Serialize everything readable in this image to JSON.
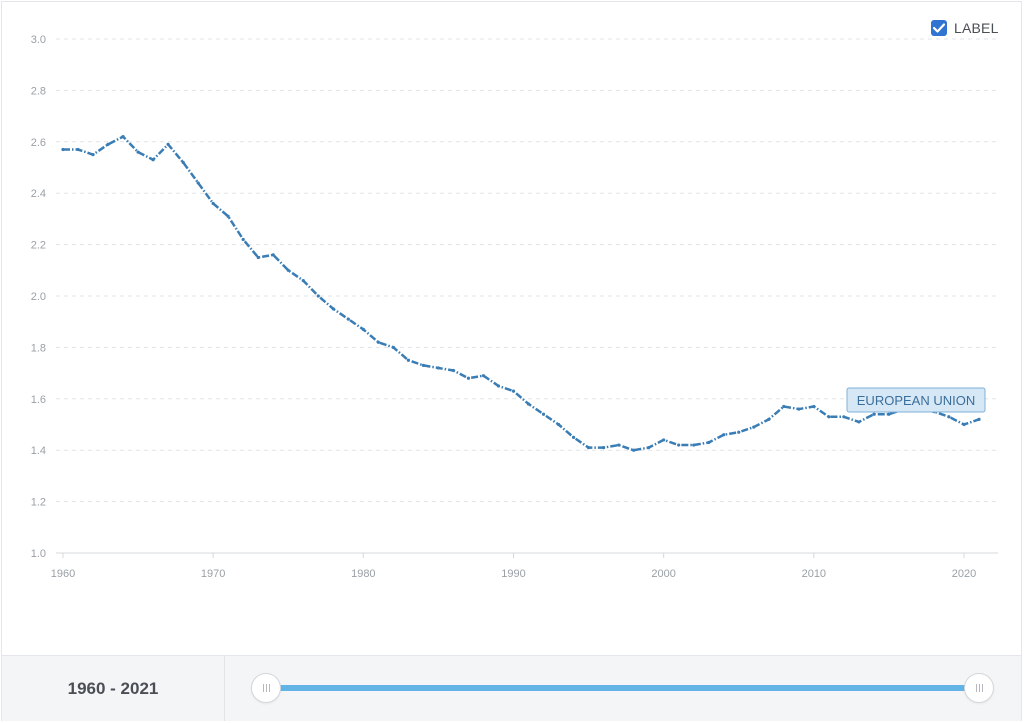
{
  "label_toggle": {
    "text": "LABEL",
    "checked": true
  },
  "footer": {
    "range_text": "1960 - 2021"
  },
  "colors": {
    "line": "#3a7db5",
    "grid": "#e1e3e6",
    "checkbox": "#2f74d0",
    "slider": "#63b4e6"
  },
  "chart_data": {
    "type": "line",
    "ylim": [
      1.0,
      3.0
    ],
    "xlim": [
      1960,
      2021
    ],
    "y_ticks": [
      "1.0",
      "1.2",
      "1.4",
      "1.6",
      "1.8",
      "2.0",
      "2.2",
      "2.4",
      "2.6",
      "2.8",
      "3.0"
    ],
    "x_ticks": [
      "1960",
      "1970",
      "1980",
      "1990",
      "2000",
      "2010",
      "2020"
    ],
    "grid": "horizontal dashed",
    "series": [
      {
        "name": "EUROPEAN UNION",
        "x": [
          1960,
          1961,
          1962,
          1963,
          1964,
          1965,
          1966,
          1967,
          1968,
          1969,
          1970,
          1971,
          1972,
          1973,
          1974,
          1975,
          1976,
          1977,
          1978,
          1979,
          1980,
          1981,
          1982,
          1983,
          1984,
          1985,
          1986,
          1987,
          1988,
          1989,
          1990,
          1991,
          1992,
          1993,
          1994,
          1995,
          1996,
          1997,
          1998,
          1999,
          2000,
          2001,
          2002,
          2003,
          2004,
          2005,
          2006,
          2007,
          2008,
          2009,
          2010,
          2011,
          2012,
          2013,
          2014,
          2015,
          2016,
          2017,
          2018,
          2019,
          2020,
          2021
        ],
        "y": [
          2.57,
          2.57,
          2.55,
          2.59,
          2.62,
          2.56,
          2.53,
          2.59,
          2.52,
          2.44,
          2.36,
          2.31,
          2.22,
          2.15,
          2.16,
          2.1,
          2.06,
          2.0,
          1.95,
          1.91,
          1.87,
          1.82,
          1.8,
          1.75,
          1.73,
          1.72,
          1.71,
          1.68,
          1.69,
          1.65,
          1.63,
          1.58,
          1.54,
          1.5,
          1.45,
          1.41,
          1.41,
          1.42,
          1.4,
          1.41,
          1.44,
          1.42,
          1.42,
          1.43,
          1.46,
          1.47,
          1.49,
          1.52,
          1.57,
          1.56,
          1.57,
          1.53,
          1.53,
          1.51,
          1.54,
          1.54,
          1.56,
          1.56,
          1.55,
          1.53,
          1.5,
          1.52
        ]
      }
    ]
  }
}
